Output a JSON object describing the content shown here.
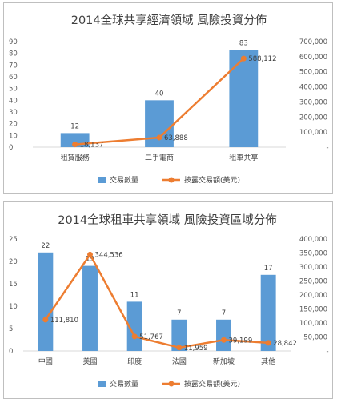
{
  "chart_data": [
    {
      "type": "bar",
      "title": "2014全球共享經濟領域 風險投資分佈",
      "categories": [
        "租賃服務",
        "二手電商",
        "租車共享"
      ],
      "series": [
        {
          "name": "交易數量",
          "type": "bar",
          "axis": "left",
          "values": [
            12,
            40,
            83
          ],
          "labels": [
            "12",
            "40",
            "83"
          ]
        },
        {
          "name": "披露交易額(美元)",
          "type": "line",
          "axis": "right",
          "values": [
            18137,
            63888,
            588112
          ],
          "labels": [
            "18,137",
            "63,888",
            "588,112"
          ]
        }
      ],
      "ylim": [
        0,
        90
      ],
      "y_ticks": [
        "0",
        "10",
        "20",
        "30",
        "40",
        "50",
        "60",
        "70",
        "80",
        "90"
      ],
      "y2lim": [
        0,
        700000
      ],
      "y2_ticks": [
        "-",
        "100,000",
        "200,000",
        "300,000",
        "400,000",
        "500,000",
        "600,000",
        "700,000"
      ],
      "legend": "bottom",
      "grid": false,
      "colors": {
        "bar": "#5b9bd5",
        "line": "#ed7d31"
      }
    },
    {
      "type": "bar",
      "title": "2014全球租車共享領域 風險投資區域分佈",
      "categories": [
        "中國",
        "美國",
        "印度",
        "法國",
        "新加坡",
        "其他"
      ],
      "series": [
        {
          "name": "交易數量",
          "type": "bar",
          "axis": "left",
          "values": [
            22,
            19,
            11,
            7,
            7,
            17
          ],
          "labels": [
            "22",
            "19",
            "11",
            "7",
            "7",
            "17"
          ]
        },
        {
          "name": "披露交易額(美元)",
          "type": "line",
          "axis": "right",
          "values": [
            111810,
            344536,
            51767,
            11959,
            39199,
            28842
          ],
          "labels": [
            "111,810",
            "344,536",
            "51,767",
            "11,959",
            "39,199",
            "28,842"
          ]
        }
      ],
      "ylim": [
        0,
        25
      ],
      "y_ticks": [
        "0",
        "5",
        "10",
        "15",
        "20",
        "25"
      ],
      "y2lim": [
        0,
        400000
      ],
      "y2_ticks": [
        "-",
        "50,000",
        "100,000",
        "150,000",
        "200,000",
        "250,000",
        "300,000",
        "350,000",
        "400,000"
      ],
      "legend": "bottom",
      "grid": false,
      "colors": {
        "bar": "#5b9bd5",
        "line": "#ed7d31"
      }
    }
  ]
}
